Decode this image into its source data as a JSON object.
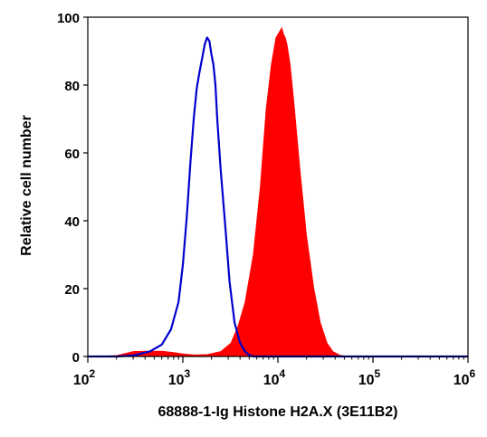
{
  "chart_data": {
    "type": "area",
    "title": "",
    "xlabel": "68888-1-Ig Histone H2A.X (3E11B2)",
    "ylabel": "Relative cell number",
    "x_scale": "log10",
    "xlim": [
      100,
      1000000
    ],
    "ylim": [
      0,
      100
    ],
    "y_ticks": [
      "0",
      "20",
      "40",
      "60",
      "80",
      "100"
    ],
    "x_ticks": [
      {
        "base": "10",
        "exp": "2",
        "value": 100
      },
      {
        "base": "10",
        "exp": "3",
        "value": 1000
      },
      {
        "base": "10",
        "exp": "4",
        "value": 10000
      },
      {
        "base": "10",
        "exp": "5",
        "value": 100000
      },
      {
        "base": "10",
        "exp": "6",
        "value": 1000000
      }
    ],
    "grid": false,
    "legend": "none",
    "series": [
      {
        "style": "filled",
        "color": "#ff0000",
        "x": [
          100,
          200,
          300,
          400,
          600,
          800,
          1000,
          1300,
          1800,
          2500,
          3200,
          3800,
          4500,
          5500,
          6500,
          7500,
          8500,
          9500,
          10500,
          11000,
          11500,
          12000,
          12500,
          13500,
          15000,
          17000,
          20000,
          24000,
          28000,
          33000,
          38000,
          45000,
          55000,
          70000,
          1000000
        ],
        "y": [
          0,
          0.3,
          1.5,
          1.6,
          1.6,
          1.2,
          0.8,
          0.5,
          0.6,
          1.5,
          4,
          9,
          16,
          30,
          50,
          73,
          86,
          94,
          96,
          97,
          95,
          94,
          92,
          86,
          73,
          56,
          36,
          20,
          10,
          4,
          1.5,
          0.4,
          0,
          0,
          0
        ]
      },
      {
        "style": "line",
        "color": "#0000cc",
        "x": [
          100,
          200,
          300,
          450,
          600,
          750,
          900,
          1000,
          1100,
          1200,
          1300,
          1400,
          1500,
          1600,
          1700,
          1800,
          1900,
          2000,
          2100,
          2200,
          2300,
          2500,
          2800,
          3100,
          3500,
          4000,
          4500,
          5000,
          5500,
          6000,
          8000,
          1000000
        ],
        "y": [
          0,
          0,
          0.3,
          1.5,
          3.5,
          8,
          16,
          27,
          41,
          57,
          70,
          79,
          84,
          88,
          92,
          94,
          93,
          89,
          86,
          80,
          70,
          55,
          38,
          22,
          10,
          4,
          1.5,
          0.4,
          0,
          0,
          0,
          0
        ]
      }
    ]
  }
}
